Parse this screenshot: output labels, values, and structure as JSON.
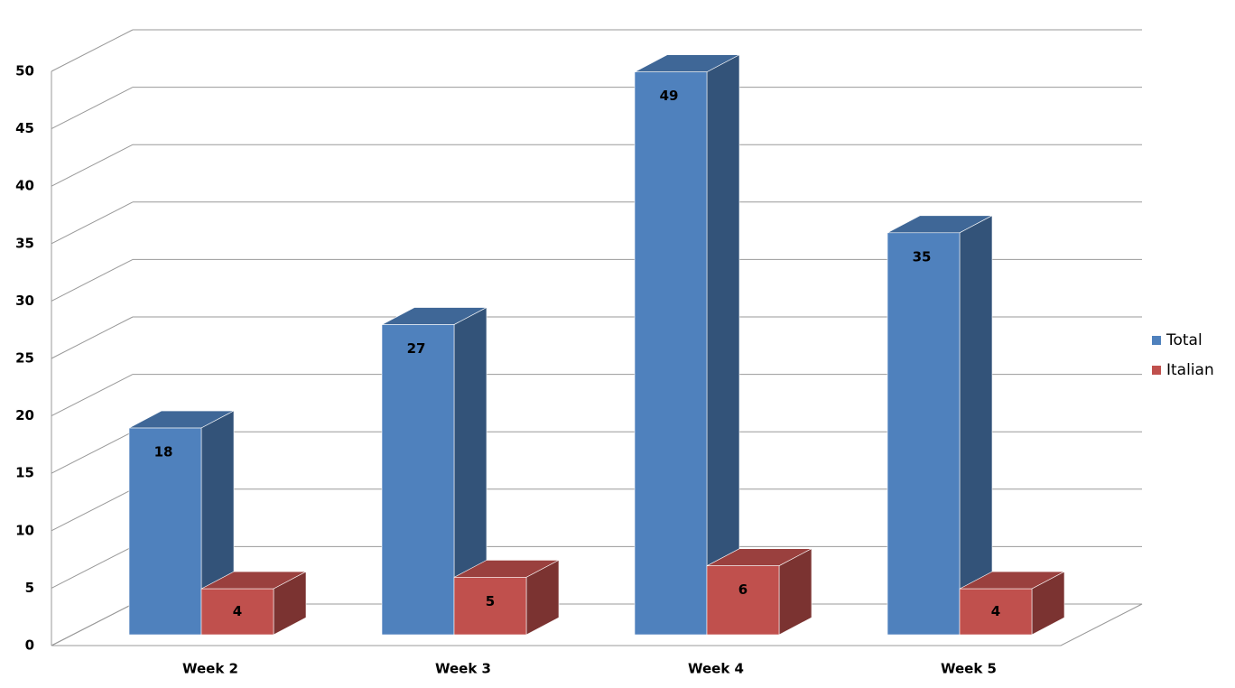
{
  "chart_data": {
    "type": "bar3d",
    "categories": [
      "Week 2",
      "Week 3",
      "Week 4",
      "Week 5"
    ],
    "series": [
      {
        "name": "Total",
        "color": "#4f81bd",
        "values": [
          18,
          27,
          49,
          35
        ]
      },
      {
        "name": "Italian",
        "color": "#c0504d",
        "values": [
          4,
          5,
          6,
          4
        ]
      }
    ],
    "ylim": [
      0,
      50
    ],
    "yticks": [
      0,
      5,
      10,
      15,
      20,
      25,
      30,
      35,
      40,
      45,
      50
    ],
    "grid": true,
    "legend": "right"
  }
}
